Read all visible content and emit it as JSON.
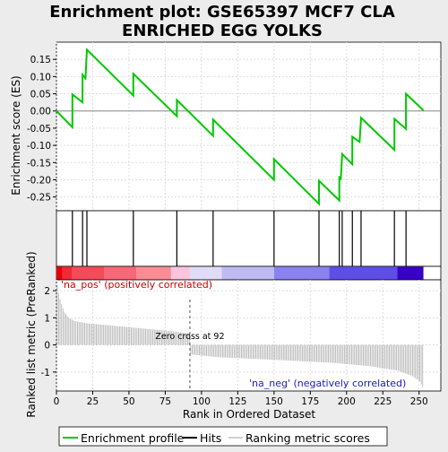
{
  "chart_data": {
    "type": "line",
    "title": "Enrichment plot: GSE65397 MCF7 CLA\nENRICHED EGG YOLKS",
    "es_panel": {
      "ylabel": "Enrichment score (ES)",
      "ylim": [
        -0.29,
        0.2
      ],
      "yticks": [
        -0.25,
        -0.2,
        -0.15,
        -0.1,
        -0.05,
        0.0,
        0.05,
        0.1,
        0.15
      ],
      "ytick_labels": [
        "-0.25",
        "-0.20",
        "-0.15",
        "-0.10",
        "-0.05",
        "0.00",
        "0.05",
        "0.10",
        "0.15"
      ],
      "grid": true,
      "color": "#00c800",
      "points": [
        [
          0,
          0.0
        ],
        [
          11,
          -0.047
        ],
        [
          11,
          0.048
        ],
        [
          18,
          0.025
        ],
        [
          18,
          0.105
        ],
        [
          20,
          0.095
        ],
        [
          21,
          0.178
        ],
        [
          53,
          0.045
        ],
        [
          53,
          0.108
        ],
        [
          83,
          -0.015
        ],
        [
          83,
          0.032
        ],
        [
          108,
          -0.072
        ],
        [
          108,
          -0.025
        ],
        [
          150,
          -0.2
        ],
        [
          150,
          -0.14
        ],
        [
          181,
          -0.27
        ],
        [
          181,
          -0.203
        ],
        [
          195,
          -0.26
        ],
        [
          195,
          -0.19
        ],
        [
          196,
          -0.2
        ],
        [
          197,
          -0.125
        ],
        [
          204,
          -0.155
        ],
        [
          204,
          -0.075
        ],
        [
          209,
          -0.09
        ],
        [
          210,
          -0.02
        ],
        [
          233,
          -0.113
        ],
        [
          233,
          -0.023
        ],
        [
          241,
          -0.052
        ],
        [
          241,
          0.05
        ],
        [
          253,
          0.002
        ]
      ]
    },
    "hits": [
      11,
      18,
      21,
      53,
      83,
      108,
      150,
      181,
      195,
      197,
      204,
      210,
      233,
      241
    ],
    "heatbar": [
      {
        "start": 0,
        "end": 4,
        "color": "#e8000a"
      },
      {
        "start": 4,
        "end": 11,
        "color": "#f32a36"
      },
      {
        "start": 11,
        "end": 33,
        "color": "#f54a58"
      },
      {
        "start": 33,
        "end": 55,
        "color": "#f86878"
      },
      {
        "start": 55,
        "end": 79,
        "color": "#fa8c96"
      },
      {
        "start": 79,
        "end": 92,
        "color": "#fcc4dc"
      },
      {
        "start": 92,
        "end": 114,
        "color": "#e0dcf8"
      },
      {
        "start": 114,
        "end": 150,
        "color": "#c0baf4"
      },
      {
        "start": 150,
        "end": 188,
        "color": "#8a82ee"
      },
      {
        "start": 188,
        "end": 235,
        "color": "#5c4ee6"
      },
      {
        "start": 235,
        "end": 253,
        "color": "#3800c8"
      }
    ],
    "ranked_panel": {
      "ylabel": "Ranked list metric (PreRanked)",
      "xlabel": "Rank in Ordered Dataset",
      "ylim": [
        -1.7,
        2.4
      ],
      "yticks": [
        -1,
        0,
        1,
        2
      ],
      "ytick_labels": [
        "-1",
        "0",
        "1",
        "2"
      ],
      "xlim": [
        0,
        265
      ],
      "xticks": [
        0,
        25,
        50,
        75,
        100,
        125,
        150,
        175,
        200,
        225,
        250
      ],
      "xtick_labels": [
        "0",
        "25",
        "50",
        "75",
        "100",
        "125",
        "150",
        "175",
        "200",
        "225",
        "250"
      ],
      "n_genes": 253,
      "zero_cross": 92,
      "zero_cross_label": "Zero cross at 92",
      "pos_label": "'na_pos' (positively correlated)",
      "neg_label": "'na_neg' (negatively correlated)",
      "metric_knots": [
        [
          0,
          2.2
        ],
        [
          1,
          1.9
        ],
        [
          2,
          1.7
        ],
        [
          3,
          1.5
        ],
        [
          5,
          1.2
        ],
        [
          8,
          1.0
        ],
        [
          12,
          0.88
        ],
        [
          20,
          0.8
        ],
        [
          40,
          0.7
        ],
        [
          60,
          0.6
        ],
        [
          80,
          0.5
        ],
        [
          88,
          0.44
        ],
        [
          91,
          0.42
        ],
        [
          92,
          -0.35
        ],
        [
          110,
          -0.45
        ],
        [
          150,
          -0.55
        ],
        [
          190,
          -0.66
        ],
        [
          215,
          -0.78
        ],
        [
          235,
          -0.95
        ],
        [
          245,
          -1.15
        ],
        [
          250,
          -1.35
        ],
        [
          252,
          -1.55
        ],
        [
          253,
          -1.6
        ]
      ]
    },
    "legend": {
      "placement": "bottom",
      "items": [
        {
          "label": "Enrichment profile",
          "color": "#00c800"
        },
        {
          "label": "Hits",
          "color": "#000000"
        },
        {
          "label": "Ranking metric scores",
          "color": "#c0c0c0"
        }
      ]
    }
  }
}
